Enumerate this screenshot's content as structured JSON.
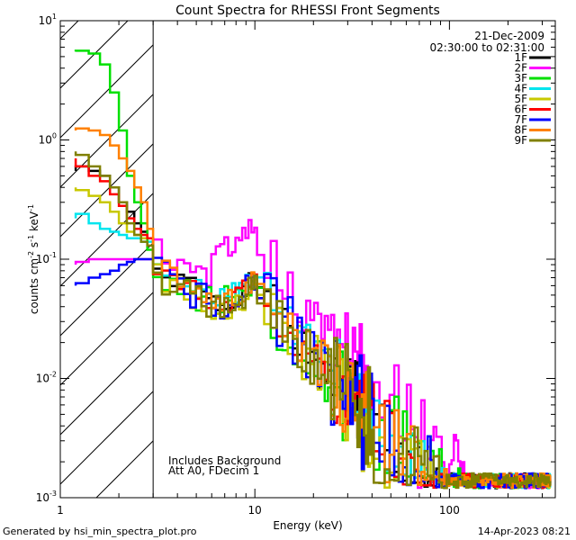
{
  "chart_data": {
    "type": "line",
    "title": "Count Spectra for RHESSI Front Segments",
    "xlabel": "Energy (keV)",
    "ylabel": "counts cm-2 s-1 keV-1",
    "ylabel_parts": {
      "base": "counts cm",
      "e1": "-2",
      "s": " s",
      "e2": "-1",
      "k": " keV",
      "e3": "-1"
    },
    "xscale": "log",
    "yscale": "log",
    "xlim": [
      1,
      350
    ],
    "ylim": [
      0.001,
      10
    ],
    "x_tick_labels": [
      {
        "value": 1,
        "label": "1"
      },
      {
        "value": 10,
        "label": "10"
      },
      {
        "value": 100,
        "label": "100"
      }
    ],
    "y_tick_labels": [
      {
        "value": 0.001,
        "base": "10",
        "exp": "-3"
      },
      {
        "value": 0.01,
        "base": "10",
        "exp": "-2"
      },
      {
        "value": 0.1,
        "base": "10",
        "exp": "-1"
      },
      {
        "value": 1,
        "base": "10",
        "exp": "0"
      },
      {
        "value": 10,
        "base": "10",
        "exp": "1"
      }
    ],
    "hatched_region": {
      "x_from": 1,
      "x_to": 3
    },
    "date": "21-Dec-2009",
    "time_range": "02:30:00 to 02:31:00",
    "annotations": [
      "Includes Background",
      "Att A0, FDecim 1"
    ],
    "legend_position": "top-right",
    "series": [
      {
        "name": "1F",
        "color": "#000000",
        "base": 0.9,
        "amp": 0.22,
        "seed": 1
      },
      {
        "name": "2F",
        "color": "#ff00ff",
        "base": 1.35,
        "amp": 0.2,
        "seed": 2
      },
      {
        "name": "3F",
        "color": "#00e000",
        "base": 0.85,
        "amp": 0.3,
        "seed": 3
      },
      {
        "name": "4F",
        "color": "#00e5ee",
        "base": 1.0,
        "amp": 0.2,
        "seed": 4
      },
      {
        "name": "5F",
        "color": "#c8c800",
        "base": 0.8,
        "amp": 0.25,
        "seed": 5
      },
      {
        "name": "6F",
        "color": "#ff0000",
        "base": 0.9,
        "amp": 0.2,
        "seed": 6
      },
      {
        "name": "7F",
        "color": "#0000ff",
        "base": 0.85,
        "amp": 0.28,
        "seed": 7
      },
      {
        "name": "8F",
        "color": "#ff8000",
        "base": 0.95,
        "amp": 0.22,
        "seed": 8
      },
      {
        "name": "9F",
        "color": "#808000",
        "base": 0.8,
        "amp": 0.28,
        "seed": 9
      }
    ],
    "low_energy_plateaus": {
      "x": [
        1.2,
        1.4,
        1.6,
        1.8,
        2.0,
        2.2,
        2.4,
        2.6,
        2.8,
        3.0
      ],
      "1F": [
        0.55,
        0.6,
        0.55,
        0.5,
        0.4,
        0.3,
        0.25,
        0.2,
        0.17,
        0.15
      ],
      "2F": [
        0.09,
        0.095,
        0.1,
        0.1,
        0.1,
        0.1,
        0.1,
        0.1,
        0.1,
        0.1
      ],
      "3F": [
        5.5,
        5.6,
        5.3,
        4.3,
        2.5,
        1.2,
        0.5,
        0.3,
        0.2,
        0.12
      ],
      "4F": [
        0.22,
        0.24,
        0.2,
        0.18,
        0.17,
        0.16,
        0.15,
        0.15,
        0.14,
        0.14
      ],
      "5F": [
        0.4,
        0.38,
        0.34,
        0.3,
        0.25,
        0.2,
        0.17,
        0.16,
        0.15,
        0.15
      ],
      "6F": [
        0.7,
        0.6,
        0.5,
        0.45,
        0.35,
        0.28,
        0.22,
        0.18,
        0.16,
        0.15
      ],
      "7F": [
        0.06,
        0.063,
        0.07,
        0.075,
        0.08,
        0.09,
        0.095,
        0.1,
        0.1,
        0.1
      ],
      "8F": [
        1.2,
        1.25,
        1.2,
        1.1,
        0.9,
        0.7,
        0.55,
        0.4,
        0.3,
        0.18
      ],
      "9F": [
        0.8,
        0.75,
        0.6,
        0.5,
        0.4,
        0.3,
        0.2,
        0.16,
        0.14,
        0.13
      ]
    }
  },
  "footer": {
    "generated_by": "Generated by hsi_min_spectra_plot.pro",
    "timestamp": "14-Apr-2023 08:21"
  }
}
